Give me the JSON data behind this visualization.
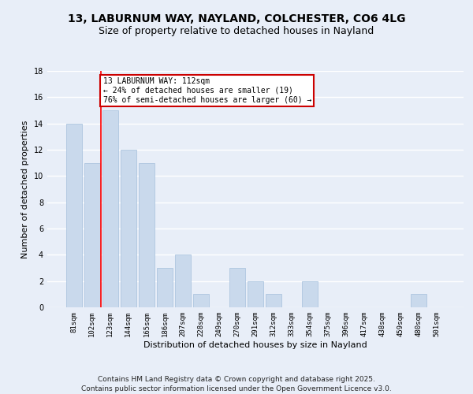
{
  "title1": "13, LABURNUM WAY, NAYLAND, COLCHESTER, CO6 4LG",
  "title2": "Size of property relative to detached houses in Nayland",
  "xlabel": "Distribution of detached houses by size in Nayland",
  "ylabel": "Number of detached properties",
  "categories": [
    "81sqm",
    "102sqm",
    "123sqm",
    "144sqm",
    "165sqm",
    "186sqm",
    "207sqm",
    "228sqm",
    "249sqm",
    "270sqm",
    "291sqm",
    "312sqm",
    "333sqm",
    "354sqm",
    "375sqm",
    "396sqm",
    "417sqm",
    "438sqm",
    "459sqm",
    "480sqm",
    "501sqm"
  ],
  "values": [
    14,
    11,
    15,
    12,
    11,
    3,
    4,
    1,
    0,
    3,
    2,
    1,
    0,
    2,
    0,
    0,
    0,
    0,
    0,
    1,
    0
  ],
  "bar_color": "#c9d9ec",
  "bar_edge_color": "#aec6e0",
  "red_line_x": 1.5,
  "annotation_text": "13 LABURNUM WAY: 112sqm\n← 24% of detached houses are smaller (19)\n76% of semi-detached houses are larger (60) →",
  "annotation_box_color": "#ffffff",
  "annotation_box_edge": "#cc0000",
  "ylim": [
    0,
    18
  ],
  "yticks": [
    0,
    2,
    4,
    6,
    8,
    10,
    12,
    14,
    16,
    18
  ],
  "footnote": "Contains HM Land Registry data © Crown copyright and database right 2025.\nContains public sector information licensed under the Open Government Licence v3.0.",
  "background_color": "#e8eef8",
  "grid_color": "#ffffff",
  "title_fontsize": 10,
  "subtitle_fontsize": 9,
  "axis_label_fontsize": 8,
  "tick_fontsize": 6.5,
  "annotation_fontsize": 7,
  "footnote_fontsize": 6.5
}
